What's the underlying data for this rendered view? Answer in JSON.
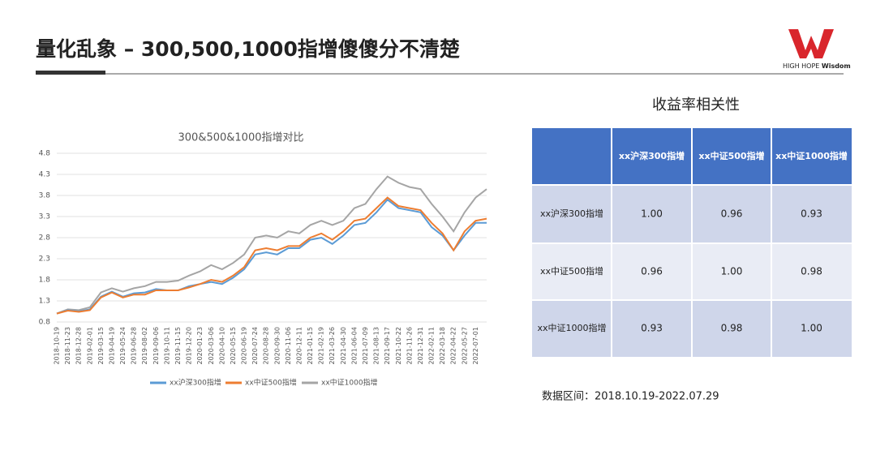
{
  "header": {
    "title": "量化乱象 – 300,500,1000指增傻傻分不清楚"
  },
  "logo": {
    "name": "HIGH HOPE",
    "accent": "Wisdom"
  },
  "chart_data": {
    "type": "line",
    "title": "300&500&1000指增对比",
    "categories": [
      "2018-10-19",
      "2018-11-23",
      "2018-12-28",
      "2019-02-01",
      "2019-03-15",
      "2019-04-19",
      "2019-05-24",
      "2019-06-28",
      "2019-08-02",
      "2019-09-06",
      "2019-10-11",
      "2019-11-15",
      "2019-12-20",
      "2020-01-23",
      "2020-03-06",
      "2020-04-10",
      "2020-05-15",
      "2020-06-19",
      "2020-07-24",
      "2020-08-28",
      "2020-09-30",
      "2020-11-06",
      "2020-12-11",
      "2021-01-15",
      "2021-02-19",
      "2021-03-26",
      "2021-04-30",
      "2021-06-04",
      "2021-07-09",
      "2021-08-13",
      "2021-09-17",
      "2021-10-22",
      "2021-11-26",
      "2021-12-31",
      "2022-02-11",
      "2022-03-18",
      "2022-04-22",
      "2022-05-27",
      "2022-07-01",
      null
    ],
    "series": [
      {
        "name": "xx沪深300指增",
        "color": "#5b9bd5",
        "values": [
          1.0,
          1.08,
          1.05,
          1.1,
          1.4,
          1.52,
          1.4,
          1.48,
          1.5,
          1.58,
          1.55,
          1.55,
          1.65,
          1.7,
          1.75,
          1.7,
          1.85,
          2.05,
          2.4,
          2.45,
          2.4,
          2.55,
          2.55,
          2.75,
          2.8,
          2.65,
          2.85,
          3.1,
          3.15,
          3.4,
          3.7,
          3.5,
          3.45,
          3.4,
          3.05,
          2.85,
          2.5,
          2.85,
          3.15,
          3.15
        ]
      },
      {
        "name": "xx中证500指增",
        "color": "#ed7d31",
        "values": [
          1.0,
          1.07,
          1.04,
          1.08,
          1.38,
          1.5,
          1.38,
          1.45,
          1.45,
          1.55,
          1.55,
          1.55,
          1.62,
          1.7,
          1.8,
          1.75,
          1.9,
          2.1,
          2.5,
          2.55,
          2.5,
          2.6,
          2.6,
          2.8,
          2.9,
          2.75,
          2.95,
          3.2,
          3.25,
          3.5,
          3.75,
          3.55,
          3.5,
          3.45,
          3.15,
          2.9,
          2.5,
          2.95,
          3.2,
          3.25
        ]
      },
      {
        "name": "xx中证1000指增",
        "color": "#a5a5a5",
        "values": [
          1.0,
          1.1,
          1.08,
          1.15,
          1.5,
          1.6,
          1.52,
          1.6,
          1.65,
          1.75,
          1.75,
          1.78,
          1.9,
          2.0,
          2.15,
          2.05,
          2.2,
          2.4,
          2.8,
          2.85,
          2.8,
          2.95,
          2.9,
          3.1,
          3.2,
          3.1,
          3.2,
          3.5,
          3.6,
          3.95,
          4.25,
          4.1,
          4.0,
          3.95,
          3.6,
          3.3,
          2.95,
          3.4,
          3.75,
          3.95
        ]
      }
    ],
    "ylim": [
      0.8,
      4.8
    ],
    "yticks": [
      0.8,
      1.3,
      1.8,
      2.3,
      2.8,
      3.3,
      3.8,
      4.3,
      4.8
    ],
    "grid": true,
    "legend": "bottom"
  },
  "table": {
    "title": "收益率相关性",
    "columns": [
      "xx沪深300指增",
      "xx中证500指增",
      "xx中证1000指增"
    ],
    "rows": [
      {
        "label": "xx沪深300指增",
        "cells": [
          "1.00",
          "0.96",
          "0.93"
        ]
      },
      {
        "label": "xx中证500指增",
        "cells": [
          "0.96",
          "1.00",
          "0.98"
        ]
      },
      {
        "label": "xx中证1000指增",
        "cells": [
          "0.93",
          "0.98",
          "1.00"
        ]
      }
    ]
  },
  "note": "数据区间：2018.10.19-2022.07.29"
}
